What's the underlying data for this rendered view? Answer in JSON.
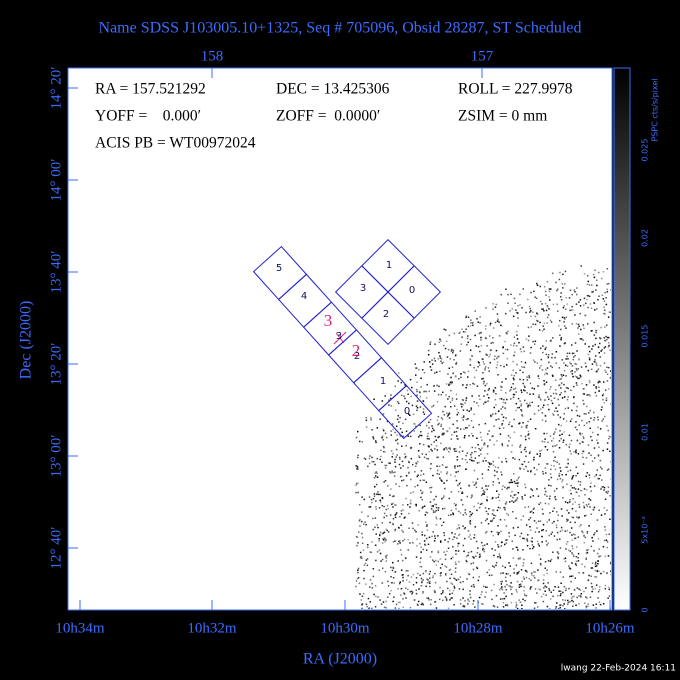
{
  "title": "Name SDSS J103005.10+1325, Seq # 705096, Obsid 28287, ST Scheduled",
  "info": {
    "ra": "RA = 157.521292",
    "dec": "DEC = 13.425306",
    "roll": "ROLL = 227.9978",
    "yoff": "YOFF =    0.000′",
    "zoff": "ZOFF =  0.0000′",
    "zsim": "ZSIM = 0 mm",
    "acis_pb": "ACIS PB = WT00972024"
  },
  "top_ticks": [
    "158",
    "157"
  ],
  "bottom_ticks": [
    "10h34m",
    "10h32m",
    "10h30m",
    "10h28m",
    "10h26m"
  ],
  "left_ticks": [
    "14° 20′",
    "14° 00′",
    "13° 40′",
    "13° 20′",
    "13° 00′",
    "12° 40′"
  ],
  "x_label": "RA (J2000)",
  "y_label": "Dec (J2000)",
  "colorbar": {
    "label": "PSPC cts/s/pixel",
    "ticks": [
      "0",
      "5x10⁻³",
      "0.01",
      "0.015",
      "0.02",
      "0.025"
    ]
  },
  "acis_i_chips": [
    "1",
    "3",
    "0",
    "2"
  ],
  "acis_s_chips": [
    "5",
    "4",
    "3",
    "2",
    "1",
    "0"
  ],
  "aimpoint_labels": [
    "3",
    "2"
  ],
  "footer": "lwang 22-Feb-2024 16:11"
}
